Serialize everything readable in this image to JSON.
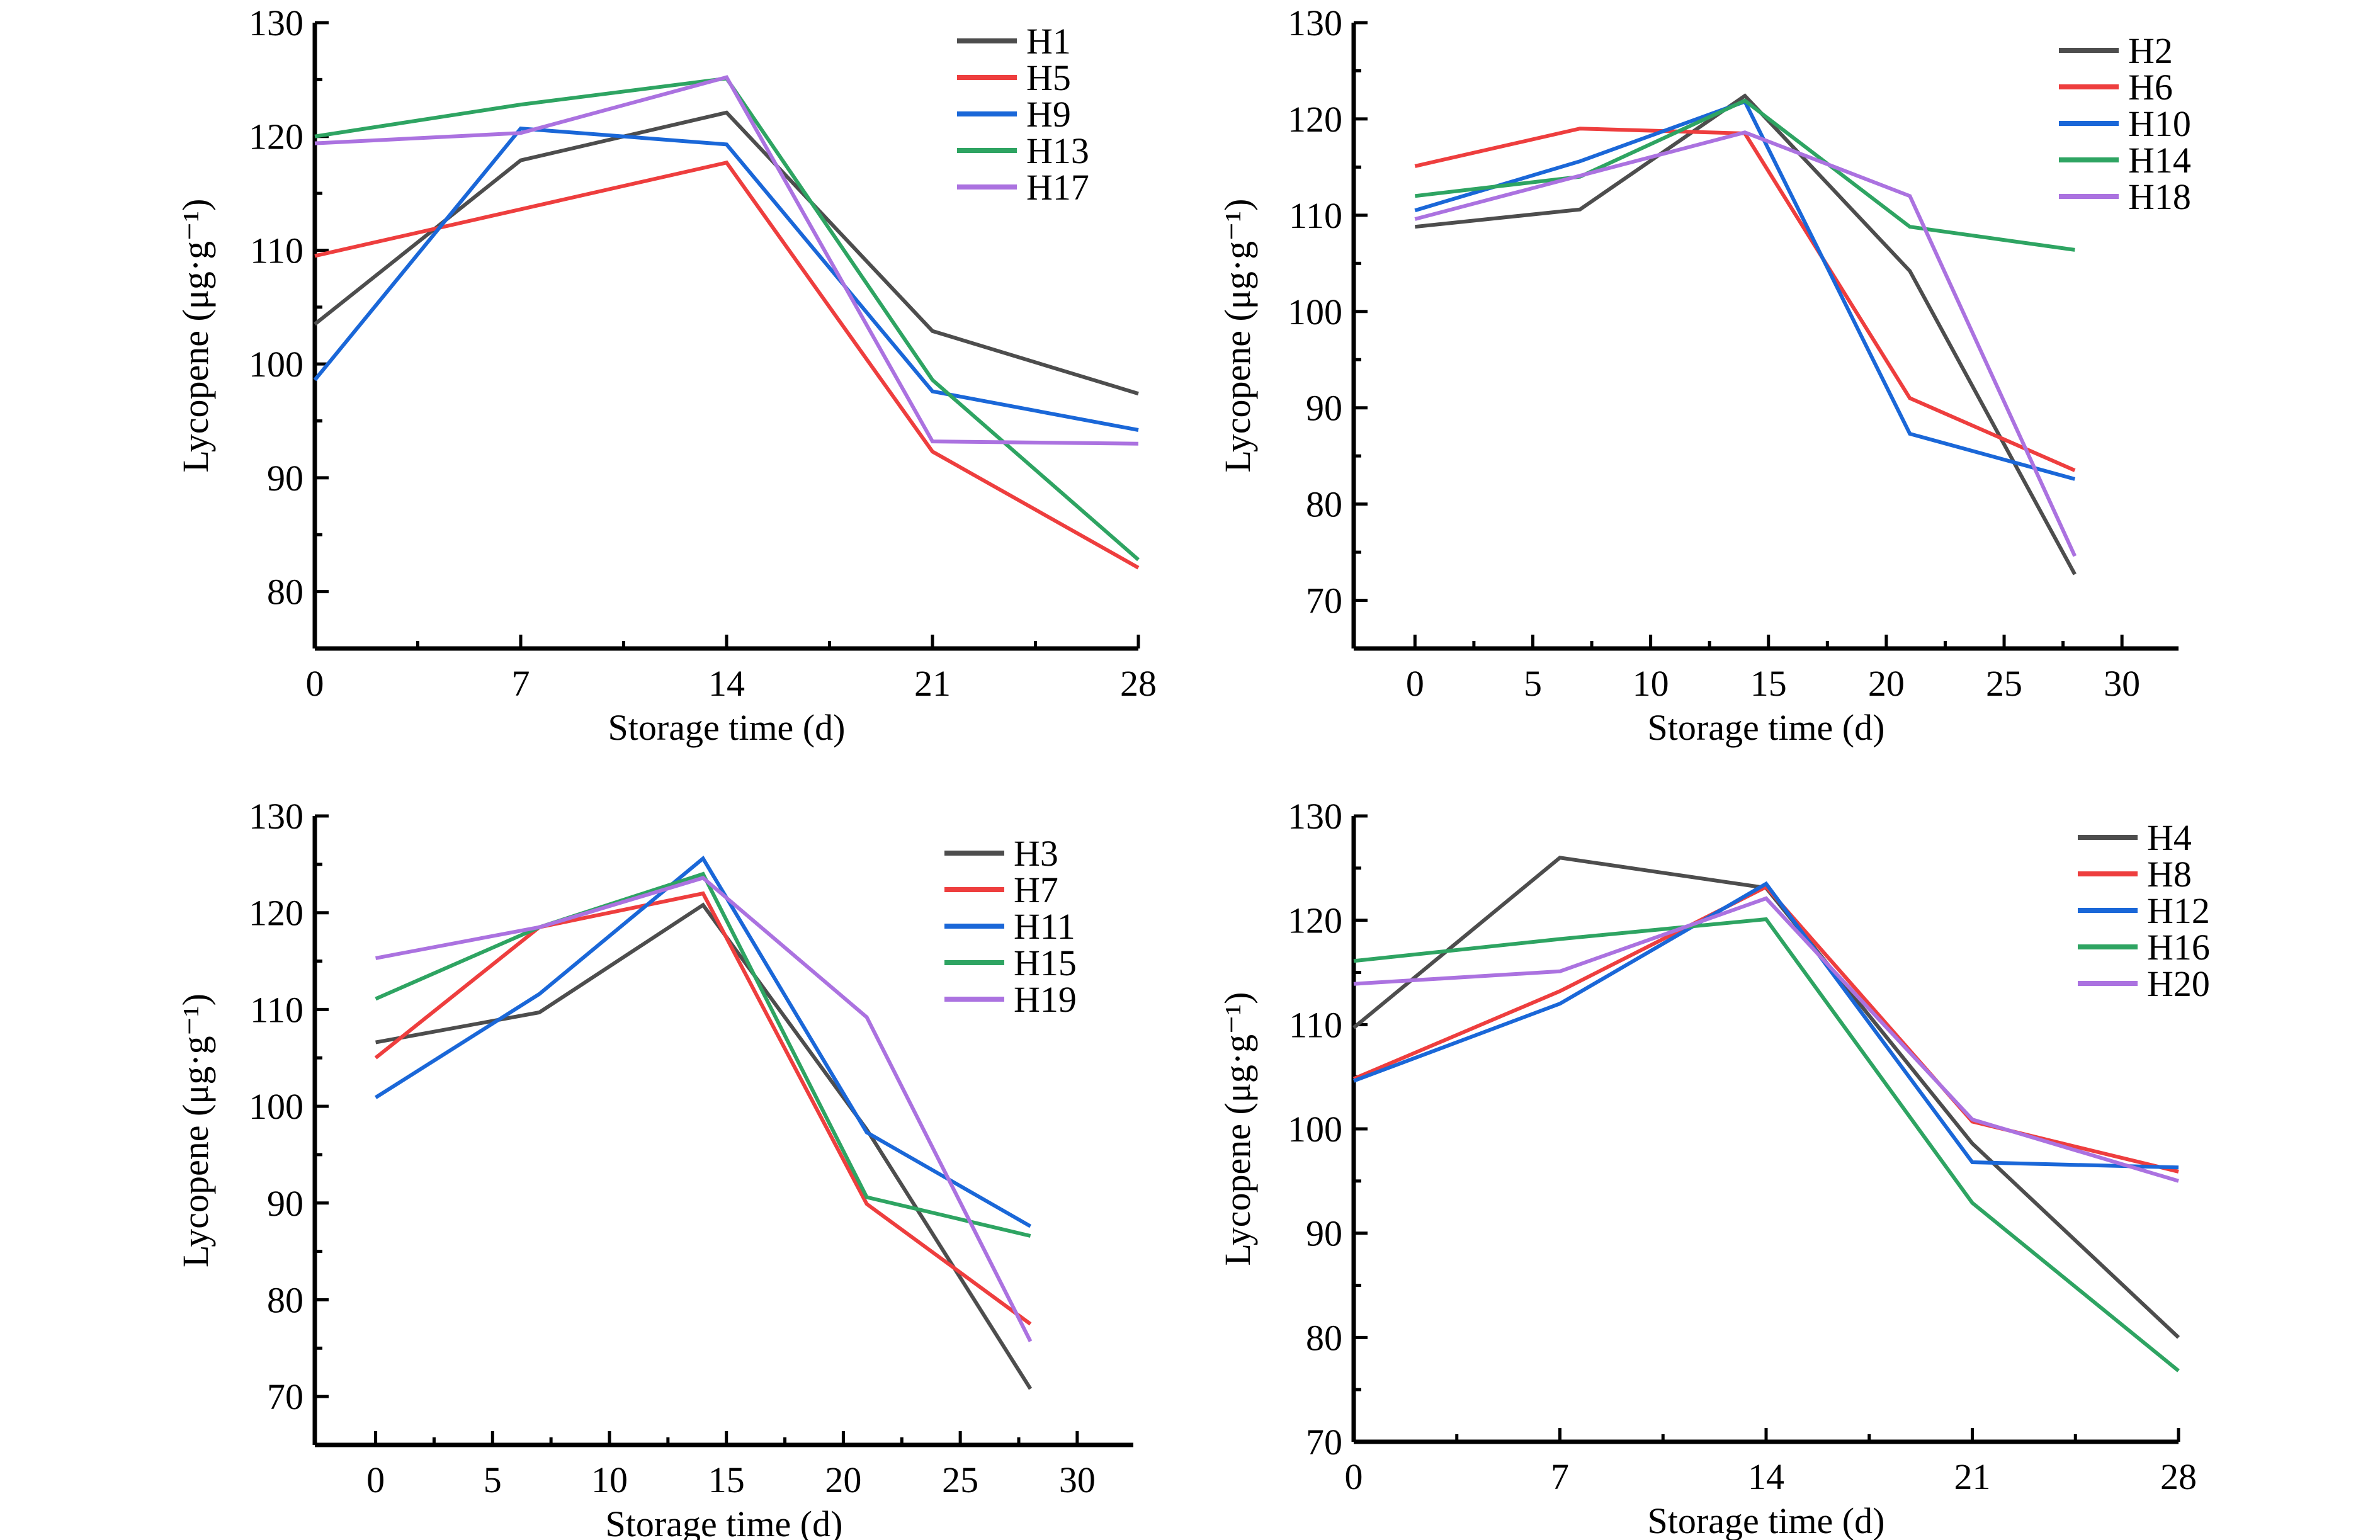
{
  "chart_data": [
    {
      "type": "line",
      "panel": "top-left",
      "xlabel": "Storage time (d)",
      "ylabel": "Lycopene (μg·g⁻¹)",
      "x": [
        0,
        7,
        14,
        21,
        28
      ],
      "xticks": [
        0,
        7,
        14,
        21,
        28
      ],
      "xlim": [
        0,
        28
      ],
      "yticks": [
        80,
        90,
        100,
        110,
        120,
        130
      ],
      "ylim": [
        75,
        130
      ],
      "legend": "top-right",
      "grid": false,
      "series": [
        {
          "name": "H1",
          "color": "#4d4d4d",
          "values": [
            103.5,
            117.9,
            122.1,
            102.9,
            97.4
          ]
        },
        {
          "name": "H5",
          "color": "#ee3e3e",
          "values": [
            109.5,
            113.6,
            117.7,
            92.3,
            82.1
          ]
        },
        {
          "name": "H9",
          "color": "#1a67d8",
          "values": [
            98.6,
            120.7,
            119.3,
            97.6,
            94.2
          ]
        },
        {
          "name": "H13",
          "color": "#2ea462",
          "values": [
            120.0,
            122.8,
            125.1,
            98.6,
            82.8
          ]
        },
        {
          "name": "H17",
          "color": "#ab72e0",
          "values": [
            119.4,
            120.3,
            125.2,
            93.2,
            93.0
          ]
        }
      ]
    },
    {
      "type": "line",
      "panel": "top-right",
      "xlabel": "Storage time (d)",
      "ylabel": "Lycopene (μg·g⁻¹)",
      "x": [
        0,
        7,
        14,
        21,
        28
      ],
      "xticks": [
        0,
        5,
        10,
        15,
        20,
        25,
        30
      ],
      "xlim": [
        -2.6,
        32.4
      ],
      "yticks": [
        70,
        80,
        90,
        100,
        110,
        120,
        130
      ],
      "ylim": [
        65,
        130
      ],
      "legend": "top-right",
      "grid": false,
      "series": [
        {
          "name": "H2",
          "color": "#4d4d4d",
          "values": [
            108.8,
            110.6,
            122.4,
            104.2,
            72.7
          ]
        },
        {
          "name": "H6",
          "color": "#ee3e3e",
          "values": [
            115.1,
            119.0,
            118.5,
            91.0,
            83.5
          ]
        },
        {
          "name": "H10",
          "color": "#1a67d8",
          "values": [
            110.5,
            115.6,
            121.8,
            87.3,
            82.6
          ]
        },
        {
          "name": "H14",
          "color": "#2ea462",
          "values": [
            112.0,
            114.0,
            121.9,
            108.8,
            106.4
          ]
        },
        {
          "name": "H18",
          "color": "#ab72e0",
          "values": [
            109.6,
            114.1,
            118.6,
            112.0,
            74.6
          ]
        }
      ]
    },
    {
      "type": "line",
      "panel": "bottom-left",
      "xlabel": "Storage time (d)",
      "ylabel": "Lycopene (μg·g⁻¹)",
      "x": [
        0,
        7,
        14,
        21,
        28
      ],
      "xticks": [
        0,
        5,
        10,
        15,
        20,
        25,
        30
      ],
      "xlim": [
        -2.6,
        32.4
      ],
      "yticks": [
        70,
        80,
        90,
        100,
        110,
        120,
        130
      ],
      "ylim": [
        65,
        130
      ],
      "legend": "top-right",
      "grid": false,
      "series": [
        {
          "name": "H3",
          "color": "#4d4d4d",
          "values": [
            106.6,
            109.7,
            120.8,
            97.6,
            70.8
          ]
        },
        {
          "name": "H7",
          "color": "#ee3e3e",
          "values": [
            105.0,
            118.5,
            122.0,
            89.9,
            77.5
          ]
        },
        {
          "name": "H11",
          "color": "#1a67d8",
          "values": [
            100.9,
            111.6,
            125.6,
            97.3,
            87.6
          ]
        },
        {
          "name": "H15",
          "color": "#2ea462",
          "values": [
            111.1,
            118.5,
            124.0,
            90.6,
            86.6
          ]
        },
        {
          "name": "H19",
          "color": "#ab72e0",
          "values": [
            115.3,
            118.5,
            123.6,
            109.2,
            75.7
          ]
        }
      ]
    },
    {
      "type": "line",
      "panel": "bottom-right",
      "xlabel": "Storage time (d)",
      "ylabel": "Lycopene (μg·g⁻¹)",
      "x": [
        0,
        7,
        14,
        21,
        28
      ],
      "xticks": [
        0,
        7,
        14,
        21,
        28
      ],
      "xlim": [
        0,
        28
      ],
      "yticks": [
        70,
        80,
        90,
        100,
        110,
        120,
        130
      ],
      "ylim": [
        70,
        130
      ],
      "legend": "top-right",
      "grid": false,
      "series": [
        {
          "name": "H4",
          "color": "#4d4d4d",
          "values": [
            109.7,
            126.0,
            123.1,
            98.6,
            80.0
          ]
        },
        {
          "name": "H8",
          "color": "#ee3e3e",
          "values": [
            104.8,
            113.2,
            123.2,
            100.7,
            95.9
          ]
        },
        {
          "name": "H12",
          "color": "#1a67d8",
          "values": [
            104.6,
            112.0,
            123.5,
            96.8,
            96.3
          ]
        },
        {
          "name": "H16",
          "color": "#2ea462",
          "values": [
            116.1,
            118.2,
            120.1,
            92.9,
            76.8
          ]
        },
        {
          "name": "H20",
          "color": "#ab72e0",
          "values": [
            113.9,
            115.1,
            122.1,
            100.9,
            95.0
          ]
        }
      ]
    }
  ]
}
